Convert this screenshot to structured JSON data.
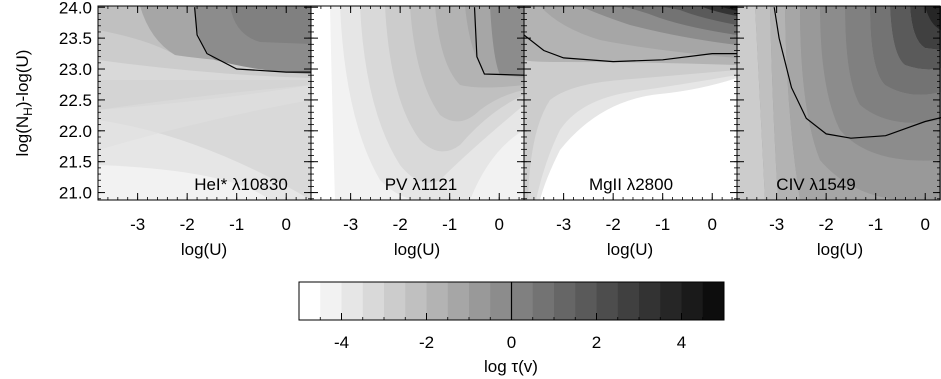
{
  "chart_data": {
    "type": "heatmap",
    "ylabel": "log(N_H)-log(U)",
    "xlabel": "log(U)",
    "xlim": [
      -3.8,
      0.5
    ],
    "ylim": [
      20.88,
      24.02
    ],
    "x_ticks": [
      -3,
      -2,
      -1,
      0
    ],
    "y_ticks": [
      21.0,
      21.5,
      22.0,
      22.5,
      23.0,
      23.5,
      24.0
    ],
    "panels": [
      {
        "label": "HeI* λ10830",
        "contour_level": 0,
        "contour_line": [
          [
            -1.85,
            24.0
          ],
          [
            -1.8,
            23.55
          ],
          [
            -1.6,
            23.25
          ],
          [
            -1.0,
            23.0
          ],
          [
            0.0,
            22.95
          ],
          [
            0.5,
            22.95
          ]
        ]
      },
      {
        "label": "PV λ1121",
        "contour_level": 0,
        "contour_line": [
          [
            -0.5,
            24.0
          ],
          [
            -0.45,
            23.2
          ],
          [
            -0.3,
            22.92
          ],
          [
            0.5,
            22.9
          ]
        ]
      },
      {
        "label": "MgII λ2800",
        "contour_level": 0,
        "contour_line": [
          [
            -3.8,
            23.55
          ],
          [
            -3.4,
            23.3
          ],
          [
            -3.0,
            23.18
          ],
          [
            -2.0,
            23.12
          ],
          [
            -1.0,
            23.15
          ],
          [
            0.0,
            23.25
          ],
          [
            0.5,
            23.25
          ]
        ]
      },
      {
        "label": "CIV λ1549",
        "contour_level": 0,
        "contour_line": [
          [
            -3.05,
            24.0
          ],
          [
            -2.95,
            23.5
          ],
          [
            -2.7,
            22.7
          ],
          [
            -2.4,
            22.2
          ],
          [
            -2.0,
            21.95
          ],
          [
            -1.5,
            21.88
          ],
          [
            -0.8,
            21.92
          ],
          [
            0.0,
            22.15
          ],
          [
            0.5,
            22.25
          ]
        ]
      }
    ],
    "colorbar": {
      "label": "log τ(v)",
      "range": [
        -5,
        5
      ],
      "ticks": [
        -4,
        -2,
        0,
        2,
        4
      ],
      "levels": [
        -5,
        -4.5,
        -4,
        -3.5,
        -3,
        -2.5,
        -2,
        -1.5,
        -1,
        -0.5,
        0,
        0.5,
        1,
        1.5,
        2,
        2.5,
        3,
        3.5,
        4,
        4.5,
        5
      ],
      "colors": [
        "#ffffff",
        "#f2f2f2",
        "#e6e6e6",
        "#d9d9d9",
        "#cccccc",
        "#c0c0c0",
        "#b3b3b3",
        "#a6a6a6",
        "#999999",
        "#8c8c8c",
        "#808080",
        "#737373",
        "#666666",
        "#5a5a5a",
        "#4d4d4d",
        "#404040",
        "#333333",
        "#262626",
        "#1a1a1a",
        "#0d0d0d"
      ]
    }
  }
}
